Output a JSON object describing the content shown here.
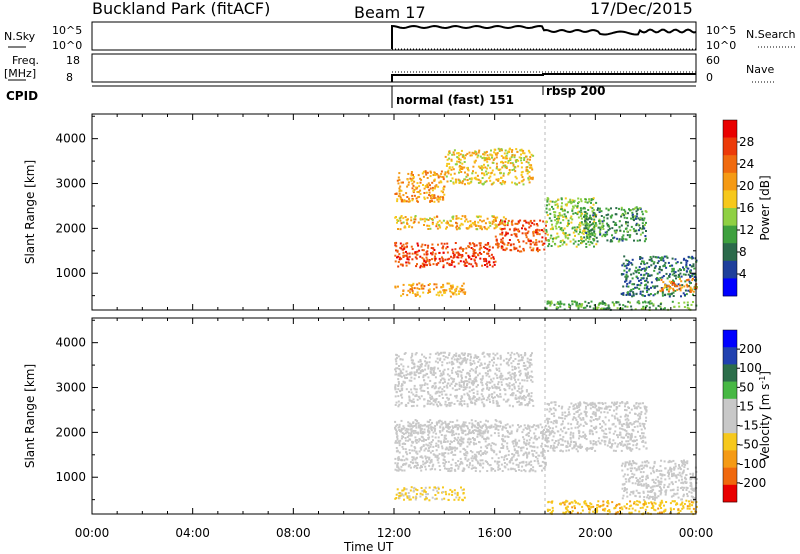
{
  "header": {
    "station": "Buckland Park (fitACF)",
    "beam": "Beam 17",
    "date": "17/Dec/2015"
  },
  "strip_labels": {
    "nsky": "N.Sky",
    "nsky_top": "10^5",
    "nsky_bot": "10^0",
    "nsearch": "N.Search",
    "nsearch_top": "10^5",
    "nsearch_bot": "10^0",
    "freq": "Freq.",
    "freq_unit": "[MHz]",
    "freq_top": "18",
    "freq_bot": "8",
    "nave": "Nave",
    "nave_top": "60",
    "nave_bot": "0",
    "cpid": "CPID",
    "cpid_entries": [
      {
        "label": "normal (fast) 151",
        "start_hour": 12
      },
      {
        "label": "rbsp 200",
        "start_hour": 18
      }
    ]
  },
  "colors": {
    "power_scale": [
      "#0000ff",
      "#1e3f9b",
      "#2b6a4b",
      "#3ea03e",
      "#8fd043",
      "#f6c81c",
      "#f59a14",
      "#f06a0e",
      "#ec3a08",
      "#e90000"
    ],
    "velocity_scale": [
      "#0000ff",
      "#2141b0",
      "#2c6e4a",
      "#47b844",
      "#c8c8c8",
      "#c8c8c8",
      "#f6c81c",
      "#f59a14",
      "#f0680d",
      "#e90000"
    ]
  },
  "chart_data": [
    {
      "type": "heatmap",
      "panel": "power",
      "ylabel": "Slant Range [km]",
      "xlabel": "",
      "xlim_hours": [
        0,
        24
      ],
      "ylim_km": [
        180,
        4550
      ],
      "yticks": [
        "1000",
        "2000",
        "3000",
        "4000"
      ],
      "colorbar": {
        "label": "Power [dB]",
        "ticks": [
          "4",
          "8",
          "12",
          "16",
          "20",
          "24",
          "28"
        ],
        "range": [
          0,
          32
        ]
      },
      "echo_regions": [
        {
          "t": [
            12.0,
            14.8
          ],
          "range_km": [
            500,
            800
          ],
          "value": 20
        },
        {
          "t": [
            12.0,
            16.0
          ],
          "range_km": [
            1150,
            1700
          ],
          "value": 27
        },
        {
          "t": [
            16.0,
            18.0
          ],
          "range_km": [
            1500,
            2200
          ],
          "value": 26
        },
        {
          "t": [
            12.0,
            16.5
          ],
          "range_km": [
            2000,
            2300
          ],
          "value": 19
        },
        {
          "t": [
            12.0,
            14.0
          ],
          "range_km": [
            2600,
            3300
          ],
          "value": 21
        },
        {
          "t": [
            14.0,
            17.5
          ],
          "range_km": [
            3000,
            3800
          ],
          "value": 18
        },
        {
          "t": [
            18.0,
            20.0
          ],
          "range_km": [
            1600,
            2700
          ],
          "value": 14
        },
        {
          "t": [
            19.5,
            22.0
          ],
          "range_km": [
            1700,
            2500
          ],
          "value": 10
        },
        {
          "t": [
            21.0,
            24.0
          ],
          "range_km": [
            500,
            1400
          ],
          "value": 8
        },
        {
          "t": [
            22.5,
            24.0
          ],
          "range_km": [
            600,
            900
          ],
          "value": 22
        },
        {
          "t": [
            18.0,
            24.0
          ],
          "range_km": [
            200,
            400
          ],
          "value": 12
        }
      ]
    },
    {
      "type": "heatmap",
      "panel": "velocity",
      "ylabel": "Slant Range [km]",
      "xlabel": "Time UT",
      "xlim_hours": [
        0,
        24
      ],
      "ylim_km": [
        180,
        4550
      ],
      "xticks": [
        "00:00",
        "04:00",
        "08:00",
        "12:00",
        "16:00",
        "20:00",
        "00:00"
      ],
      "yticks": [
        "1000",
        "2000",
        "3000",
        "4000"
      ],
      "colorbar": {
        "label": "Velocity [m s",
        "label_sup": "-1",
        "label_end": "]",
        "ticks": [
          "200",
          "100",
          "50",
          "15",
          "-15",
          "-50",
          "-100",
          "-200"
        ],
        "range": [
          -250,
          250
        ]
      },
      "echo_regions": [
        {
          "t": [
            12.0,
            14.8
          ],
          "range_km": [
            500,
            800
          ],
          "value": -60
        },
        {
          "t": [
            12.0,
            18.0
          ],
          "range_km": [
            1150,
            2200
          ],
          "value": 0
        },
        {
          "t": [
            12.0,
            16.5
          ],
          "range_km": [
            2000,
            2300
          ],
          "value": 10
        },
        {
          "t": [
            12.0,
            17.5
          ],
          "range_km": [
            2600,
            3800
          ],
          "value": 5
        },
        {
          "t": [
            18.0,
            22.0
          ],
          "range_km": [
            1600,
            2700
          ],
          "value": 0
        },
        {
          "t": [
            21.0,
            24.0
          ],
          "range_km": [
            500,
            1400
          ],
          "value": -20
        },
        {
          "t": [
            18.0,
            24.0
          ],
          "range_km": [
            200,
            500
          ],
          "value": -80
        }
      ]
    }
  ]
}
